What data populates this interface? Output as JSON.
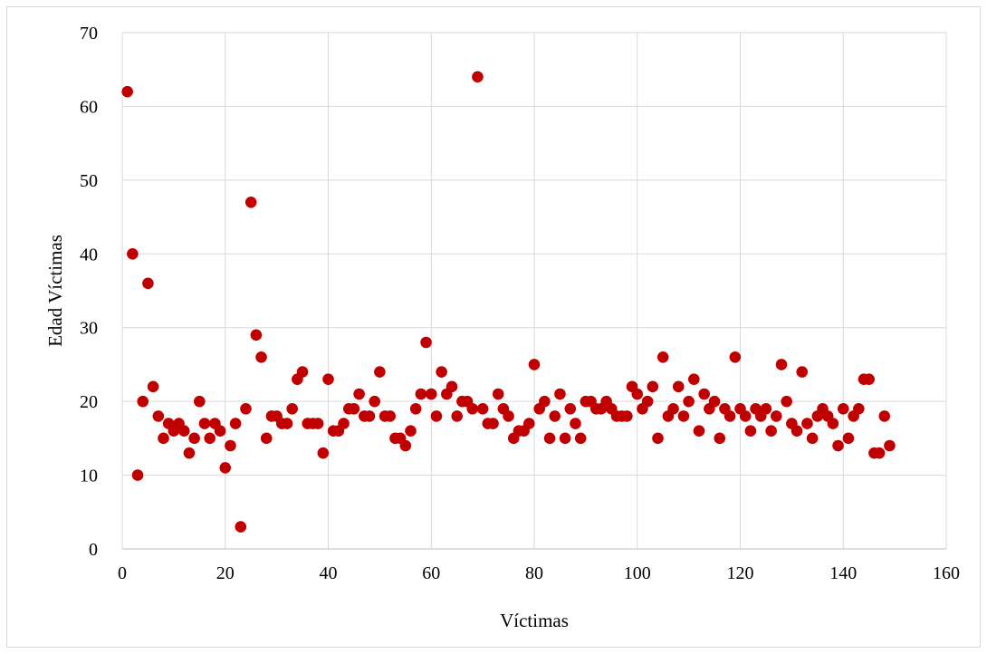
{
  "chart_data": {
    "type": "scatter",
    "title": "",
    "xlabel": "Víctimas",
    "ylabel": "Edad Víctimas",
    "xlim": [
      0,
      160
    ],
    "ylim": [
      0,
      70
    ],
    "xticks": [
      "0",
      "20",
      "40",
      "60",
      "80",
      "100",
      "120",
      "140",
      "160"
    ],
    "yticks": [
      "0",
      "10",
      "20",
      "30",
      "40",
      "50",
      "60",
      "70"
    ],
    "grid": true,
    "legend": "none",
    "marker_color": "#c00000",
    "series": [
      {
        "points": [
          [
            1,
            62
          ],
          [
            2,
            40
          ],
          [
            3,
            10
          ],
          [
            4,
            20
          ],
          [
            5,
            36
          ],
          [
            6,
            22
          ],
          [
            7,
            18
          ],
          [
            8,
            15
          ],
          [
            9,
            17
          ],
          [
            10,
            16
          ],
          [
            11,
            17
          ],
          [
            12,
            16
          ],
          [
            13,
            13
          ],
          [
            14,
            15
          ],
          [
            15,
            20
          ],
          [
            16,
            17
          ],
          [
            17,
            15
          ],
          [
            18,
            17
          ],
          [
            19,
            16
          ],
          [
            20,
            11
          ],
          [
            21,
            14
          ],
          [
            22,
            17
          ],
          [
            23,
            3
          ],
          [
            24,
            19
          ],
          [
            25,
            47
          ],
          [
            26,
            29
          ],
          [
            27,
            26
          ],
          [
            28,
            15
          ],
          [
            29,
            18
          ],
          [
            30,
            18
          ],
          [
            31,
            17
          ],
          [
            32,
            17
          ],
          [
            33,
            19
          ],
          [
            34,
            23
          ],
          [
            35,
            24
          ],
          [
            36,
            17
          ],
          [
            37,
            17
          ],
          [
            38,
            17
          ],
          [
            39,
            13
          ],
          [
            40,
            23
          ],
          [
            41,
            16
          ],
          [
            42,
            16
          ],
          [
            43,
            17
          ],
          [
            44,
            19
          ],
          [
            45,
            19
          ],
          [
            46,
            21
          ],
          [
            47,
            18
          ],
          [
            48,
            18
          ],
          [
            49,
            20
          ],
          [
            50,
            24
          ],
          [
            51,
            18
          ],
          [
            52,
            18
          ],
          [
            53,
            15
          ],
          [
            54,
            15
          ],
          [
            55,
            14
          ],
          [
            56,
            16
          ],
          [
            57,
            19
          ],
          [
            58,
            21
          ],
          [
            59,
            28
          ],
          [
            60,
            21
          ],
          [
            61,
            18
          ],
          [
            62,
            24
          ],
          [
            63,
            21
          ],
          [
            64,
            22
          ],
          [
            65,
            18
          ],
          [
            66,
            20
          ],
          [
            67,
            20
          ],
          [
            68,
            19
          ],
          [
            69,
            64
          ],
          [
            70,
            19
          ],
          [
            71,
            17
          ],
          [
            72,
            17
          ],
          [
            73,
            21
          ],
          [
            74,
            19
          ],
          [
            75,
            18
          ],
          [
            76,
            15
          ],
          [
            77,
            16
          ],
          [
            78,
            16
          ],
          [
            79,
            17
          ],
          [
            80,
            25
          ],
          [
            81,
            19
          ],
          [
            82,
            20
          ],
          [
            83,
            15
          ],
          [
            84,
            18
          ],
          [
            85,
            21
          ],
          [
            86,
            15
          ],
          [
            87,
            19
          ],
          [
            88,
            17
          ],
          [
            89,
            15
          ],
          [
            90,
            20
          ],
          [
            91,
            20
          ],
          [
            92,
            19
          ],
          [
            93,
            19
          ],
          [
            94,
            20
          ],
          [
            95,
            19
          ],
          [
            96,
            18
          ],
          [
            97,
            18
          ],
          [
            98,
            18
          ],
          [
            99,
            22
          ],
          [
            100,
            21
          ],
          [
            101,
            19
          ],
          [
            102,
            20
          ],
          [
            103,
            22
          ],
          [
            104,
            15
          ],
          [
            105,
            26
          ],
          [
            106,
            18
          ],
          [
            107,
            19
          ],
          [
            108,
            22
          ],
          [
            109,
            18
          ],
          [
            110,
            20
          ],
          [
            111,
            23
          ],
          [
            112,
            16
          ],
          [
            113,
            21
          ],
          [
            114,
            19
          ],
          [
            115,
            20
          ],
          [
            116,
            15
          ],
          [
            117,
            19
          ],
          [
            118,
            18
          ],
          [
            119,
            26
          ],
          [
            120,
            19
          ],
          [
            121,
            18
          ],
          [
            122,
            16
          ],
          [
            123,
            19
          ],
          [
            124,
            18
          ],
          [
            125,
            19
          ],
          [
            126,
            16
          ],
          [
            127,
            18
          ],
          [
            128,
            25
          ],
          [
            129,
            20
          ],
          [
            130,
            17
          ],
          [
            131,
            16
          ],
          [
            132,
            24
          ],
          [
            133,
            17
          ],
          [
            134,
            15
          ],
          [
            135,
            18
          ],
          [
            136,
            19
          ],
          [
            137,
            18
          ],
          [
            138,
            17
          ],
          [
            139,
            14
          ],
          [
            140,
            19
          ],
          [
            141,
            15
          ],
          [
            142,
            18
          ],
          [
            143,
            19
          ],
          [
            144,
            23
          ],
          [
            145,
            23
          ],
          [
            146,
            13
          ],
          [
            147,
            13
          ],
          [
            148,
            18
          ],
          [
            149,
            14
          ]
        ]
      }
    ]
  }
}
